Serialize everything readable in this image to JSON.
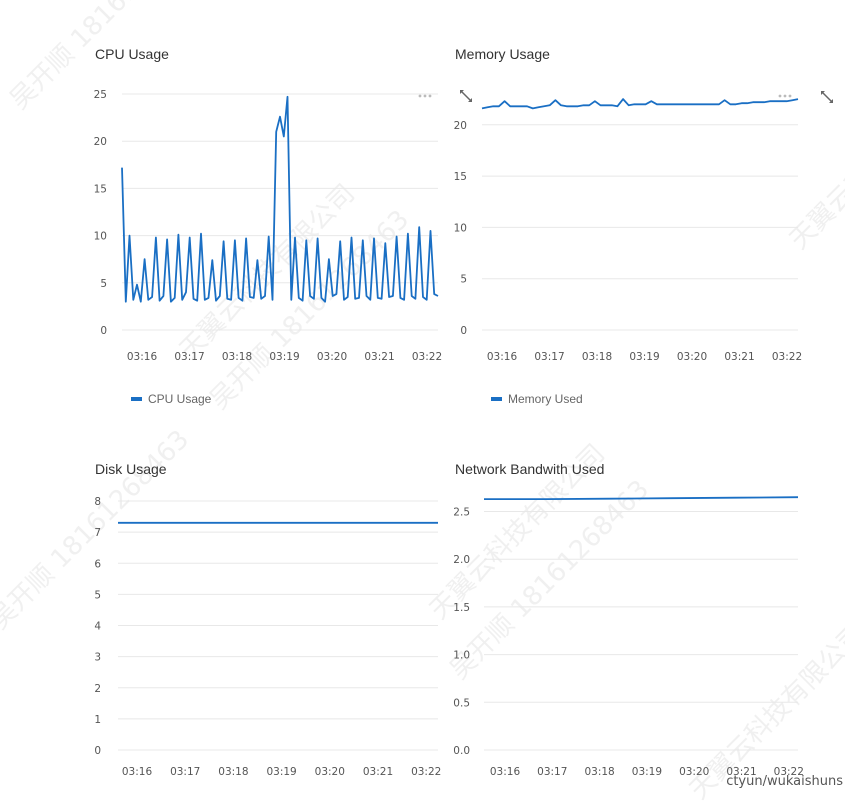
{
  "colors": {
    "series": "#1a6fc4",
    "grid": "#e8e8e8",
    "axis_text": "#555555"
  },
  "watermark": {
    "text_cn": "天翼云科技有限公司",
    "text_id": "吴开顺 18161268463"
  },
  "credit": "ctyun/wukaishuns",
  "icons": {
    "expand": "expand-arrows-icon",
    "more": "more-dots-icon"
  },
  "charts": [
    {
      "title": "CPU Usage",
      "chart_data": {
        "type": "line",
        "title": "CPU Usage",
        "x_ticks": [
          "03:16",
          "03:17",
          "03:18",
          "03:19",
          "03:20",
          "03:21",
          "03:22"
        ],
        "y_ticks": [
          "0",
          "5",
          "10",
          "15",
          "20",
          "25"
        ],
        "ylim": [
          0,
          25
        ],
        "series": [
          {
            "name": "CPU Usage",
            "description_points": [
              17.2,
              3.0,
              10.0,
              3.2,
              4.8,
              3.0,
              7.5,
              3.2,
              3.5,
              9.8,
              3.1,
              3.6,
              9.6,
              3.0,
              3.4,
              10.1,
              3.2,
              4.0,
              9.8,
              3.3,
              3.1,
              10.2,
              3.2,
              3.4,
              7.4,
              3.1,
              3.6,
              9.4,
              3.3,
              3.2,
              9.5,
              3.4,
              3.1,
              9.7,
              3.5,
              3.4,
              7.4,
              3.3,
              3.6,
              9.9,
              3.2,
              21.0,
              22.6,
              20.5,
              24.7,
              3.2,
              9.8,
              3.4,
              3.1,
              9.5,
              3.6,
              3.3,
              9.7,
              3.4,
              3.0,
              7.5,
              3.6,
              3.8,
              9.4,
              3.2,
              3.5,
              9.8,
              3.3,
              3.4,
              9.5,
              3.6,
              3.2,
              9.7,
              3.4,
              3.3,
              9.2,
              3.5,
              3.6,
              9.9,
              3.4,
              3.2,
              10.2,
              3.6,
              3.3,
              10.9,
              3.5,
              3.2,
              10.5,
              3.8,
              3.6
            ]
          }
        ],
        "legend": [
          "CPU Usage"
        ],
        "grid": true,
        "legend_position": "bottom-left"
      },
      "has_more_menu": true
    },
    {
      "title": "Memory Usage",
      "chart_data": {
        "type": "line",
        "title": "Memory Usage",
        "x_ticks": [
          "03:16",
          "03:17",
          "03:18",
          "03:19",
          "03:20",
          "03:21",
          "03:22"
        ],
        "y_ticks": [
          "0",
          "5",
          "10",
          "15",
          "20"
        ],
        "ylim": [
          0,
          23
        ],
        "series": [
          {
            "name": "Memory Used",
            "description_points": [
              21.6,
              21.7,
              21.8,
              21.8,
              22.3,
              21.8,
              21.8,
              21.8,
              21.8,
              21.6,
              21.7,
              21.8,
              21.9,
              22.4,
              21.9,
              21.8,
              21.8,
              21.8,
              21.9,
              21.9,
              22.3,
              21.9,
              21.9,
              21.9,
              21.8,
              22.5,
              21.9,
              22.0,
              22.0,
              22.0,
              22.3,
              22.0,
              22.0,
              22.0,
              22.0,
              22.0,
              22.0,
              22.0,
              22.0,
              22.0,
              22.0,
              22.0,
              22.0,
              22.4,
              22.0,
              22.0,
              22.1,
              22.1,
              22.2,
              22.2,
              22.2,
              22.3,
              22.3,
              22.3,
              22.3,
              22.4,
              22.5
            ]
          }
        ],
        "legend": [
          "Memory Used"
        ],
        "grid": true,
        "legend_position": "bottom-left"
      },
      "has_more_menu": true
    },
    {
      "title": "Disk Usage",
      "chart_data": {
        "type": "line",
        "title": "Disk Usage",
        "x_ticks": [
          "03:16",
          "03:17",
          "03:18",
          "03:19",
          "03:20",
          "03:21",
          "03:22"
        ],
        "y_ticks": [
          "0",
          "1",
          "2",
          "3",
          "4",
          "5",
          "6",
          "7",
          "8"
        ],
        "ylim": [
          0,
          8
        ],
        "series": [
          {
            "name": "",
            "description_points": [
              7.3,
              7.3
            ]
          }
        ],
        "grid": true
      },
      "has_more_menu": false
    },
    {
      "title": "Network Bandwith Used",
      "chart_data": {
        "type": "line",
        "title": "Network Bandwith Used",
        "x_ticks": [
          "03:16",
          "03:17",
          "03:18",
          "03:19",
          "03:20",
          "03:21",
          "03:22"
        ],
        "y_ticks": [
          "0.0",
          "0.5",
          "1.0",
          "1.5",
          "2.0",
          "2.5"
        ],
        "ylim": [
          0,
          2.6
        ],
        "series": [
          {
            "name": "",
            "description_points": [
              2.63,
              2.63,
              2.635,
              2.64,
              2.645,
              2.65
            ]
          }
        ],
        "grid": true
      },
      "has_more_menu": false
    }
  ]
}
